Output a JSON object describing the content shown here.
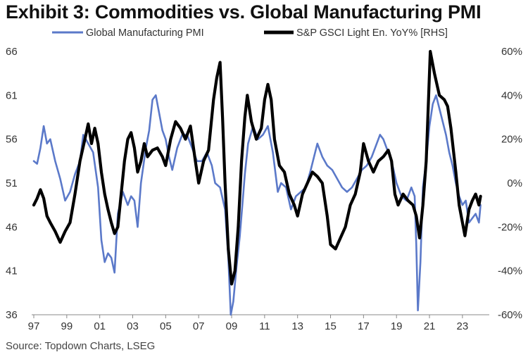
{
  "title": "Exhibit 3: Commodities vs. Global Manufacturing PMI",
  "source": "Source: Topdown Charts, LSEG",
  "colors": {
    "pmi": "#5b79c9",
    "gsci": "#000000",
    "background": "#ffffff"
  },
  "chart_data": {
    "type": "line",
    "title": "Exhibit 3: Commodities vs. Global Manufacturing PMI",
    "xlabel": "",
    "ylabel": "",
    "y2label": "",
    "xlim": [
      1997,
      2024.5
    ],
    "ylim_left": [
      36,
      66
    ],
    "ylim_right": [
      -60,
      60
    ],
    "x_ticks": [
      1997,
      1999,
      2001,
      2003,
      2005,
      2007,
      2009,
      2011,
      2013,
      2015,
      2017,
      2019,
      2021,
      2023
    ],
    "x_tick_labels": [
      "97",
      "99",
      "01",
      "03",
      "05",
      "07",
      "09",
      "11",
      "13",
      "15",
      "17",
      "19",
      "21",
      "23"
    ],
    "left_ticks": [
      36,
      41,
      46,
      51,
      56,
      61,
      66
    ],
    "left_tick_labels": [
      "36",
      "41",
      "46",
      "51",
      "56",
      "61",
      "66"
    ],
    "right_ticks": [
      -60,
      -40,
      -20,
      0,
      20,
      40,
      60
    ],
    "right_tick_labels": [
      "-60%",
      "-40%",
      "-20%",
      "0%",
      "20%",
      "40%",
      "60%"
    ],
    "legend": {
      "position": "top",
      "entries": [
        "Global Manufacturing PMI",
        "S&P GSCI Light En. YoY% [RHS]"
      ]
    },
    "series": [
      {
        "name": "Global Manufacturing PMI",
        "axis": "left",
        "color": "#5b79c9",
        "points": [
          [
            1997.0,
            53.5
          ],
          [
            1997.2,
            53.2
          ],
          [
            1997.4,
            55.0
          ],
          [
            1997.6,
            57.5
          ],
          [
            1997.8,
            55.5
          ],
          [
            1998.0,
            56.0
          ],
          [
            1998.3,
            53.5
          ],
          [
            1998.6,
            51.5
          ],
          [
            1998.9,
            49.0
          ],
          [
            1999.2,
            50.0
          ],
          [
            1999.5,
            52.0
          ],
          [
            1999.8,
            53.5
          ],
          [
            2000.0,
            56.5
          ],
          [
            2000.3,
            55.5
          ],
          [
            2000.6,
            54.5
          ],
          [
            2000.9,
            50.5
          ],
          [
            2001.1,
            44.5
          ],
          [
            2001.3,
            42.0
          ],
          [
            2001.5,
            43.0
          ],
          [
            2001.7,
            42.5
          ],
          [
            2001.9,
            40.8
          ],
          [
            2002.1,
            47.5
          ],
          [
            2002.4,
            50.0
          ],
          [
            2002.7,
            48.5
          ],
          [
            2002.9,
            49.5
          ],
          [
            2003.1,
            49.0
          ],
          [
            2003.3,
            46.0
          ],
          [
            2003.5,
            51.0
          ],
          [
            2003.8,
            55.0
          ],
          [
            2004.0,
            57.0
          ],
          [
            2004.2,
            60.5
          ],
          [
            2004.4,
            61.0
          ],
          [
            2004.6,
            59.0
          ],
          [
            2004.8,
            57.0
          ],
          [
            2005.0,
            56.0
          ],
          [
            2005.2,
            54.0
          ],
          [
            2005.4,
            52.5
          ],
          [
            2005.7,
            55.0
          ],
          [
            2006.0,
            56.5
          ],
          [
            2006.3,
            56.5
          ],
          [
            2006.6,
            55.0
          ],
          [
            2006.9,
            53.5
          ],
          [
            2007.2,
            53.5
          ],
          [
            2007.5,
            54.5
          ],
          [
            2007.8,
            53.0
          ],
          [
            2008.0,
            51.0
          ],
          [
            2008.3,
            50.5
          ],
          [
            2008.6,
            48.0
          ],
          [
            2008.8,
            42.5
          ],
          [
            2008.95,
            36.0
          ],
          [
            2009.1,
            37.5
          ],
          [
            2009.3,
            41.5
          ],
          [
            2009.5,
            45.0
          ],
          [
            2009.8,
            52.0
          ],
          [
            2010.0,
            55.5
          ],
          [
            2010.3,
            57.5
          ],
          [
            2010.6,
            56.0
          ],
          [
            2010.9,
            56.5
          ],
          [
            2011.2,
            57.5
          ],
          [
            2011.5,
            54.5
          ],
          [
            2011.8,
            50.0
          ],
          [
            2012.0,
            51.0
          ],
          [
            2012.3,
            50.5
          ],
          [
            2012.6,
            48.0
          ],
          [
            2012.9,
            49.5
          ],
          [
            2013.2,
            50.0
          ],
          [
            2013.5,
            50.5
          ],
          [
            2013.8,
            52.5
          ],
          [
            2014.0,
            54.0
          ],
          [
            2014.2,
            55.5
          ],
          [
            2014.5,
            54.0
          ],
          [
            2014.8,
            53.0
          ],
          [
            2015.1,
            52.5
          ],
          [
            2015.4,
            51.5
          ],
          [
            2015.7,
            50.5
          ],
          [
            2016.0,
            50.0
          ],
          [
            2016.3,
            50.5
          ],
          [
            2016.6,
            51.5
          ],
          [
            2016.9,
            52.5
          ],
          [
            2017.2,
            53.0
          ],
          [
            2017.5,
            54.0
          ],
          [
            2017.8,
            55.5
          ],
          [
            2018.0,
            56.5
          ],
          [
            2018.2,
            56.0
          ],
          [
            2018.4,
            55.0
          ],
          [
            2018.7,
            53.5
          ],
          [
            2019.0,
            51.0
          ],
          [
            2019.3,
            49.5
          ],
          [
            2019.6,
            49.0
          ],
          [
            2019.9,
            50.5
          ],
          [
            2020.1,
            49.5
          ],
          [
            2020.2,
            44.0
          ],
          [
            2020.3,
            36.5
          ],
          [
            2020.45,
            42.0
          ],
          [
            2020.6,
            50.5
          ],
          [
            2020.8,
            53.5
          ],
          [
            2021.0,
            57.5
          ],
          [
            2021.2,
            60.0
          ],
          [
            2021.4,
            61.0
          ],
          [
            2021.6,
            59.5
          ],
          [
            2021.8,
            58.0
          ],
          [
            2022.0,
            56.5
          ],
          [
            2022.2,
            54.5
          ],
          [
            2022.4,
            53.0
          ],
          [
            2022.6,
            51.0
          ],
          [
            2022.8,
            49.5
          ],
          [
            2023.0,
            48.5
          ],
          [
            2023.2,
            49.0
          ],
          [
            2023.4,
            46.5
          ],
          [
            2023.6,
            47.0
          ],
          [
            2023.8,
            47.5
          ],
          [
            2024.0,
            46.5
          ],
          [
            2024.1,
            48.5
          ]
        ]
      },
      {
        "name": "S&P GSCI Light En. YoY% [RHS]",
        "axis": "right",
        "color": "#000000",
        "points": [
          [
            1997.0,
            -10.0
          ],
          [
            1997.2,
            -7.0
          ],
          [
            1997.4,
            -3.0
          ],
          [
            1997.6,
            -7.0
          ],
          [
            1997.8,
            -15.0
          ],
          [
            1998.0,
            -18.0
          ],
          [
            1998.3,
            -22.0
          ],
          [
            1998.6,
            -27.0
          ],
          [
            1998.9,
            -22.0
          ],
          [
            1999.2,
            -18.0
          ],
          [
            1999.5,
            -5.0
          ],
          [
            1999.8,
            10.0
          ],
          [
            2000.1,
            20.0
          ],
          [
            2000.3,
            27.0
          ],
          [
            2000.5,
            18.0
          ],
          [
            2000.7,
            25.0
          ],
          [
            2000.9,
            18.0
          ],
          [
            2001.1,
            5.0
          ],
          [
            2001.3,
            -5.0
          ],
          [
            2001.5,
            -12.0
          ],
          [
            2001.7,
            -18.0
          ],
          [
            2001.9,
            -23.0
          ],
          [
            2002.1,
            -20.0
          ],
          [
            2002.3,
            -5.0
          ],
          [
            2002.5,
            10.0
          ],
          [
            2002.7,
            20.0
          ],
          [
            2002.9,
            23.0
          ],
          [
            2003.1,
            16.0
          ],
          [
            2003.3,
            5.0
          ],
          [
            2003.5,
            10.0
          ],
          [
            2003.7,
            18.0
          ],
          [
            2003.9,
            12.0
          ],
          [
            2004.2,
            15.0
          ],
          [
            2004.5,
            16.0
          ],
          [
            2004.8,
            12.0
          ],
          [
            2005.0,
            8.0
          ],
          [
            2005.3,
            20.0
          ],
          [
            2005.6,
            28.0
          ],
          [
            2005.9,
            25.0
          ],
          [
            2006.2,
            20.0
          ],
          [
            2006.5,
            26.0
          ],
          [
            2006.8,
            10.0
          ],
          [
            2007.0,
            0.0
          ],
          [
            2007.3,
            10.0
          ],
          [
            2007.6,
            15.0
          ],
          [
            2007.9,
            38.0
          ],
          [
            2008.1,
            48.0
          ],
          [
            2008.3,
            55.0
          ],
          [
            2008.45,
            30.0
          ],
          [
            2008.6,
            0.0
          ],
          [
            2008.8,
            -30.0
          ],
          [
            2009.0,
            -46.0
          ],
          [
            2009.2,
            -40.0
          ],
          [
            2009.4,
            -20.0
          ],
          [
            2009.6,
            10.0
          ],
          [
            2009.8,
            30.0
          ],
          [
            2009.95,
            40.0
          ],
          [
            2010.2,
            28.0
          ],
          [
            2010.5,
            20.0
          ],
          [
            2010.8,
            25.0
          ],
          [
            2011.0,
            38.0
          ],
          [
            2011.2,
            45.0
          ],
          [
            2011.4,
            38.0
          ],
          [
            2011.6,
            20.0
          ],
          [
            2011.9,
            8.0
          ],
          [
            2012.2,
            5.0
          ],
          [
            2012.5,
            -5.0
          ],
          [
            2012.8,
            -10.0
          ],
          [
            2013.0,
            -15.0
          ],
          [
            2013.3,
            -5.0
          ],
          [
            2013.6,
            0.0
          ],
          [
            2013.9,
            5.0
          ],
          [
            2014.2,
            3.0
          ],
          [
            2014.5,
            0.0
          ],
          [
            2014.8,
            -15.0
          ],
          [
            2015.0,
            -28.0
          ],
          [
            2015.3,
            -30.0
          ],
          [
            2015.6,
            -25.0
          ],
          [
            2015.9,
            -20.0
          ],
          [
            2016.2,
            -10.0
          ],
          [
            2016.5,
            -5.0
          ],
          [
            2016.8,
            5.0
          ],
          [
            2017.0,
            18.0
          ],
          [
            2017.3,
            10.0
          ],
          [
            2017.6,
            5.0
          ],
          [
            2017.9,
            10.0
          ],
          [
            2018.2,
            12.0
          ],
          [
            2018.5,
            15.0
          ],
          [
            2018.7,
            10.0
          ],
          [
            2018.9,
            -5.0
          ],
          [
            2019.1,
            -10.0
          ],
          [
            2019.4,
            -5.0
          ],
          [
            2019.7,
            -8.0
          ],
          [
            2020.0,
            -10.0
          ],
          [
            2020.2,
            -15.0
          ],
          [
            2020.4,
            -25.0
          ],
          [
            2020.6,
            -10.0
          ],
          [
            2020.8,
            10.0
          ],
          [
            2020.95,
            40.0
          ],
          [
            2021.05,
            60.0
          ],
          [
            2021.3,
            50.0
          ],
          [
            2021.6,
            40.0
          ],
          [
            2021.9,
            38.0
          ],
          [
            2022.1,
            35.0
          ],
          [
            2022.3,
            25.0
          ],
          [
            2022.6,
            5.0
          ],
          [
            2022.8,
            -10.0
          ],
          [
            2023.0,
            -18.0
          ],
          [
            2023.15,
            -24.0
          ],
          [
            2023.4,
            -12.0
          ],
          [
            2023.6,
            -8.0
          ],
          [
            2023.8,
            -5.0
          ],
          [
            2024.0,
            -10.0
          ],
          [
            2024.1,
            -6.0
          ]
        ]
      }
    ]
  }
}
